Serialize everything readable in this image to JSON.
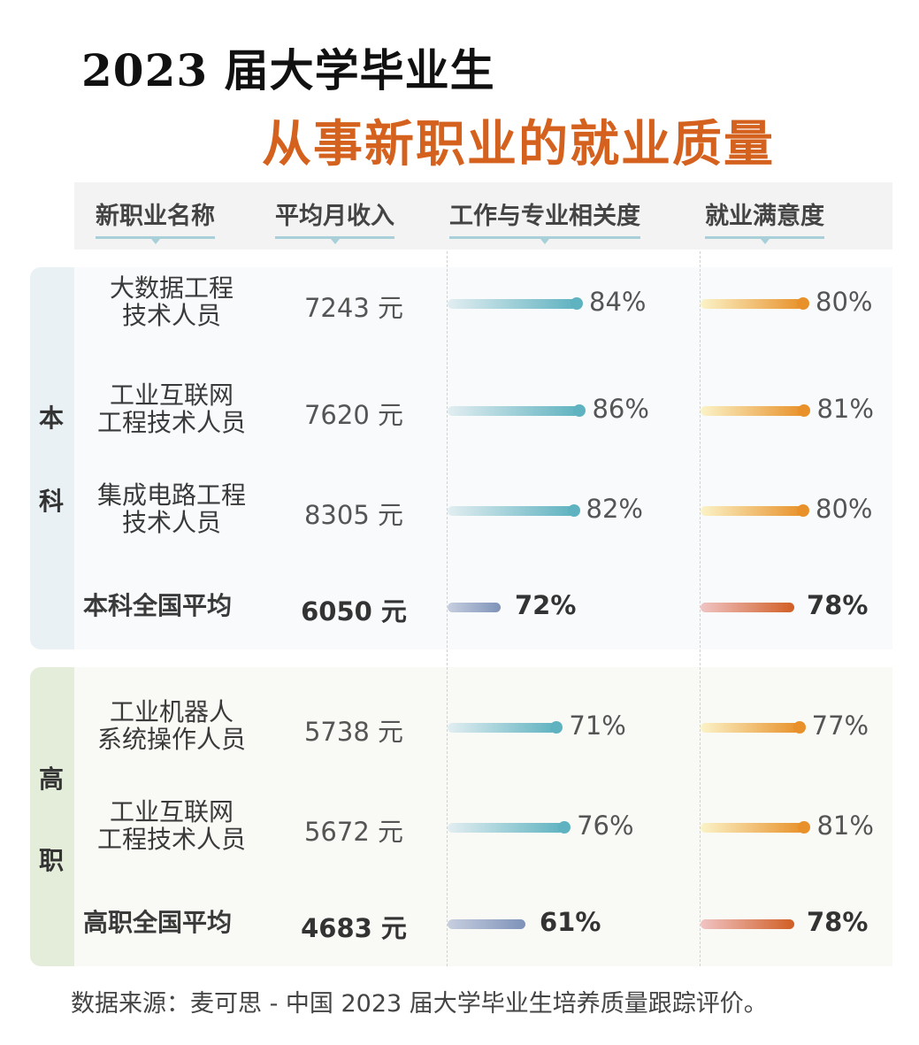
{
  "title_line1": "2023 届大学毕业生",
  "title_line2": "从事新职业的就业质量",
  "headers": [
    "新职业名称",
    "平均月收入",
    "工作与专业相关度",
    "就业满意度"
  ],
  "colors": {
    "title_accent": "#d4621e",
    "relevance_bar": "#5fb2c0",
    "relevance_avg_bar": "#7e92b9",
    "satisfaction_bar": "#e8912a",
    "satisfaction_avg_bar": "#d15e24"
  },
  "chart_data": {
    "type": "table",
    "groups": [
      {
        "label_chars": [
          "本",
          "科"
        ],
        "rows": [
          {
            "name_lines": [
              "大数据工程",
              "技术人员"
            ],
            "income": "7243 元",
            "relevance": 84,
            "relevance_label": "84%",
            "satisfaction": 80,
            "satisfaction_label": "80%",
            "average": false
          },
          {
            "name_lines": [
              "工业互联网",
              "工程技术人员"
            ],
            "income": "7620 元",
            "relevance": 86,
            "relevance_label": "86%",
            "satisfaction": 81,
            "satisfaction_label": "81%",
            "average": false
          },
          {
            "name_lines": [
              "集成电路工程",
              "技术人员"
            ],
            "income": "8305 元",
            "relevance": 82,
            "relevance_label": "82%",
            "satisfaction": 80,
            "satisfaction_label": "80%",
            "average": false
          },
          {
            "name_lines": [
              "本科全国平均"
            ],
            "income": "6050 元",
            "relevance": 72,
            "relevance_label": "72%",
            "satisfaction": 78,
            "satisfaction_label": "78%",
            "average": true
          }
        ]
      },
      {
        "label_chars": [
          "高",
          "职"
        ],
        "rows": [
          {
            "name_lines": [
              "工业机器人",
              "系统操作人员"
            ],
            "income": "5738 元",
            "relevance": 71,
            "relevance_label": "71%",
            "satisfaction": 77,
            "satisfaction_label": "77%",
            "average": false
          },
          {
            "name_lines": [
              "工业互联网",
              "工程技术人员"
            ],
            "income": "5672 元",
            "relevance": 76,
            "relevance_label": "76%",
            "satisfaction": 81,
            "satisfaction_label": "81%",
            "average": false
          },
          {
            "name_lines": [
              "高职全国平均"
            ],
            "income": "4683 元",
            "relevance": 61,
            "relevance_label": "61%",
            "satisfaction": 78,
            "satisfaction_label": "78%",
            "average": true
          }
        ]
      }
    ]
  },
  "source": "数据来源：麦可思 - 中国 2023 届大学毕业生培养质量跟踪评价。"
}
